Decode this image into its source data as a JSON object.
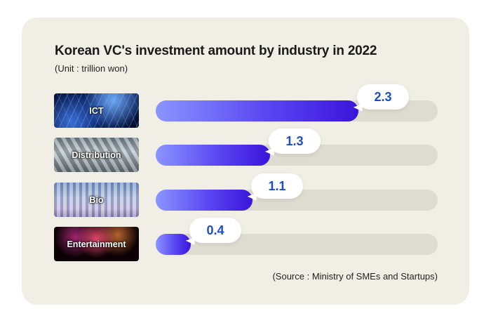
{
  "chart_data": {
    "type": "bar",
    "orientation": "horizontal",
    "title": "Korean VC's investment amount by industry in 2022",
    "unit": "(Unit : trillion won)",
    "source": "(Source : Ministry of SMEs and Startups)",
    "categories": [
      "ICT",
      "Distribution",
      "Bio",
      "Entertainment"
    ],
    "values": [
      2.3,
      1.3,
      1.1,
      0.4
    ],
    "value_labels": [
      "2.3",
      "1.3",
      "1.1",
      "0.4"
    ],
    "track_max": 3.2,
    "colors": {
      "bar_start": "#8a95ff",
      "bar_end": "#3a14dc",
      "value_text": "#1a4ec9",
      "track": "#dedbd0",
      "card": "#f1efe5"
    },
    "thumbnail_icons": [
      "network-image",
      "warehouse-image",
      "lab-tubes-image",
      "fireworks-image"
    ]
  }
}
